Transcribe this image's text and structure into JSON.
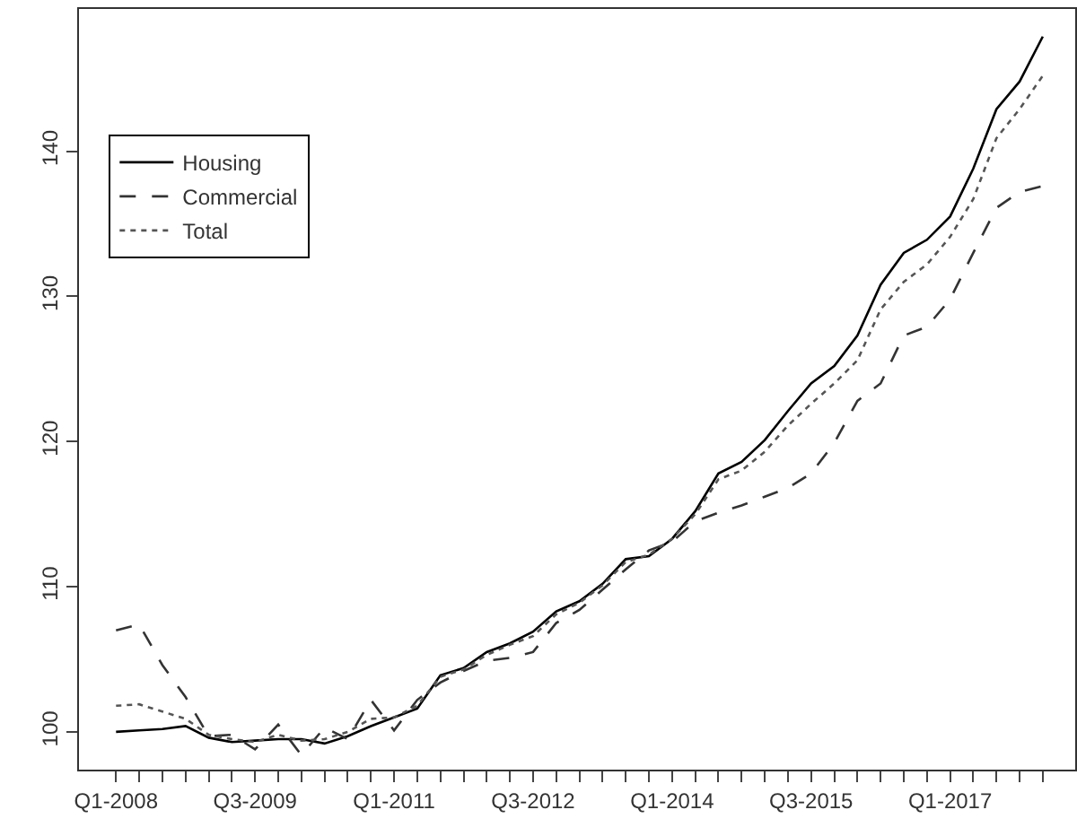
{
  "chart_data": {
    "type": "line",
    "categories": [
      "Q1-2008",
      null,
      null,
      null,
      null,
      null,
      "Q3-2009",
      null,
      null,
      null,
      null,
      null,
      "Q1-2011",
      null,
      null,
      null,
      null,
      null,
      "Q3-2012",
      null,
      null,
      null,
      null,
      null,
      "Q1-2014",
      null,
      null,
      null,
      null,
      null,
      "Q3-2015",
      null,
      null,
      null,
      null,
      null,
      "Q1-2017",
      null,
      null,
      null,
      null
    ],
    "series": [
      {
        "name": "Housing",
        "color": "#000000",
        "line_style": "solid",
        "values": [
          100.0,
          100.1,
          100.2,
          100.4,
          99.6,
          99.3,
          99.4,
          99.5,
          99.5,
          99.2,
          99.7,
          100.4,
          101.0,
          101.6,
          103.9,
          104.4,
          105.5,
          106.1,
          106.9,
          108.3,
          109.0,
          110.2,
          111.9,
          112.1,
          113.3,
          115.2,
          117.8,
          118.6,
          120.1,
          122.1,
          124.0,
          125.2,
          127.3,
          130.8,
          133.0,
          133.9,
          135.5,
          138.8,
          142.9,
          144.8,
          147.9
        ]
      },
      {
        "name": "Commercial",
        "color": "#333333",
        "line_style": "dashed",
        "values": [
          107.0,
          107.4,
          104.6,
          102.4,
          99.7,
          99.8,
          98.8,
          100.5,
          98.4,
          100.3,
          99.5,
          102.2,
          100.1,
          102.2,
          103.4,
          104.2,
          104.9,
          105.1,
          105.5,
          107.5,
          108.4,
          109.8,
          111.2,
          112.5,
          113.1,
          114.5,
          115.1,
          115.6,
          116.2,
          116.8,
          117.8,
          119.9,
          122.8,
          124.0,
          127.3,
          127.9,
          129.8,
          133.0,
          136.1,
          137.2,
          137.6
        ]
      },
      {
        "name": "Total",
        "color": "#555555",
        "line_style": "dotted",
        "values": [
          101.8,
          101.9,
          101.4,
          100.9,
          99.8,
          99.5,
          99.3,
          99.8,
          99.4,
          99.5,
          100.0,
          100.9,
          101.0,
          101.8,
          103.8,
          104.3,
          105.3,
          106.0,
          106.6,
          108.1,
          108.9,
          110.1,
          111.7,
          112.2,
          113.3,
          115.0,
          117.4,
          118.0,
          119.3,
          121.1,
          122.6,
          124.0,
          125.6,
          129.1,
          131.0,
          132.2,
          134.1,
          136.7,
          140.9,
          142.9,
          145.2
        ]
      }
    ],
    "ylim": [
      97.4,
      149.8
    ],
    "yticks": [
      100,
      110,
      120,
      130,
      140
    ],
    "legend": "top left",
    "marker": "none"
  }
}
